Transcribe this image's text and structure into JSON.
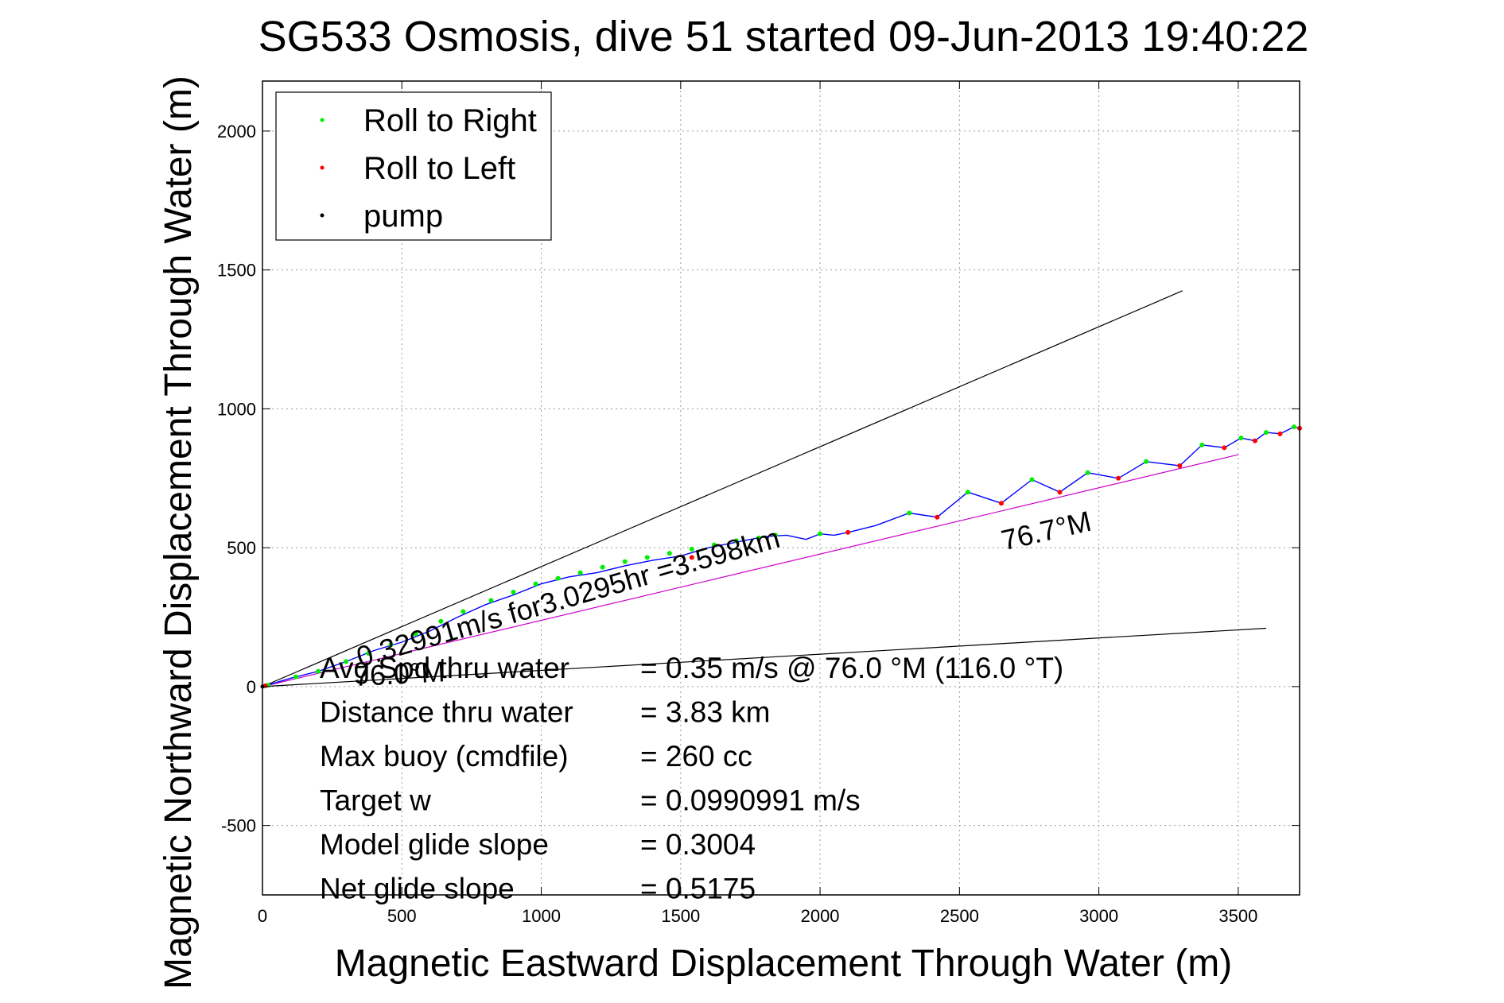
{
  "chart_data": {
    "type": "line",
    "title": "SG533 Osmosis, dive 51 started 09-Jun-2013 19:40:22",
    "xlabel": "Magnetic Eastward Displacement Through Water (m)",
    "ylabel": "Magnetic Northward Displacement Through Water (m)",
    "xlim": [
      0,
      3720
    ],
    "ylim": [
      -750,
      2180
    ],
    "x_ticks": [
      0,
      500,
      1000,
      1500,
      2000,
      2500,
      3000,
      3500
    ],
    "y_ticks": [
      -500,
      0,
      500,
      1000,
      1500,
      2000
    ],
    "grid": true,
    "legend_position": "top-left",
    "legend": [
      {
        "label": "Roll to Right",
        "color": "#00ee00"
      },
      {
        "label": "Roll to Left",
        "color": "#ff0000"
      },
      {
        "label": "pump",
        "color": "#000000"
      }
    ],
    "track": {
      "color": "#0000ff",
      "x": [
        0,
        100,
        200,
        300,
        400,
        500,
        600,
        700,
        800,
        900,
        1000,
        1100,
        1200,
        1300,
        1400,
        1500,
        1600,
        1700,
        1800,
        1880,
        1950,
        2000,
        2050,
        2100,
        2200,
        2320,
        2420,
        2530,
        2650,
        2760,
        2860,
        2960,
        3070,
        3170,
        3290,
        3370,
        3450,
        3510,
        3560,
        3600,
        3650,
        3700,
        3720
      ],
      "y": [
        0,
        30,
        55,
        90,
        130,
        160,
        200,
        250,
        295,
        330,
        370,
        395,
        410,
        435,
        455,
        470,
        500,
        520,
        540,
        545,
        530,
        550,
        545,
        555,
        580,
        625,
        610,
        700,
        660,
        745,
        700,
        770,
        750,
        810,
        795,
        870,
        860,
        895,
        885,
        915,
        910,
        935,
        930
      ]
    },
    "roll_right_x": [
      20,
      120,
      200,
      300,
      380,
      460,
      550,
      640,
      720,
      820,
      900,
      980,
      1060,
      1140,
      1220,
      1300,
      1380,
      1460,
      1540,
      1620,
      1700,
      1780,
      1840,
      2000,
      2320,
      2530,
      2760,
      2960,
      3170,
      3370,
      3510,
      3600,
      3700
    ],
    "roll_right_y": [
      5,
      35,
      55,
      90,
      120,
      150,
      190,
      235,
      270,
      310,
      340,
      370,
      390,
      410,
      430,
      450,
      465,
      480,
      495,
      510,
      525,
      535,
      545,
      550,
      625,
      700,
      745,
      770,
      810,
      870,
      895,
      915,
      935
    ],
    "roll_left_x": [
      10,
      1540,
      2100,
      2420,
      2650,
      2860,
      3070,
      3290,
      3450,
      3560,
      3650,
      3720
    ],
    "roll_left_y": [
      3,
      465,
      555,
      610,
      660,
      700,
      750,
      795,
      860,
      885,
      910,
      930
    ],
    "pump_x": [
      0
    ],
    "pump_y": [
      0
    ],
    "reference_lines": [
      {
        "x": [
          0,
          3300
        ],
        "y": [
          0,
          1425
        ],
        "color": "#000000"
      },
      {
        "x": [
          0,
          3600
        ],
        "y": [
          0,
          210
        ],
        "color": "#000000"
      },
      {
        "x": [
          0,
          3500
        ],
        "y": [
          0,
          835
        ],
        "color": "#cc00cc"
      }
    ],
    "annotations": [
      {
        "text": "0.32991m/s for3.0295hr =3.598km",
        "x": 350,
        "y": 70,
        "angle_deg": 16
      },
      {
        "text": "76.7°M",
        "x": 2660,
        "y": 490,
        "angle_deg": 13
      },
      {
        "text": "76.0°M",
        "x": 330,
        "y": 2,
        "angle_deg": 3
      }
    ],
    "stats": [
      {
        "label": "Avg Spd thru water",
        "value": "=  0.35 m/s @  76.0 °M (116.0 °T)"
      },
      {
        "label": "Distance thru water",
        "value": "=  3.83 km"
      },
      {
        "label": "Max buoy (cmdfile)",
        "value": "= 260 cc"
      },
      {
        "label": "Target w",
        "value": "= 0.0990991 m/s"
      },
      {
        "label": "Model glide slope",
        "value": "= 0.3004"
      },
      {
        "label": "Net glide slope",
        "value": "= 0.5175"
      }
    ]
  }
}
